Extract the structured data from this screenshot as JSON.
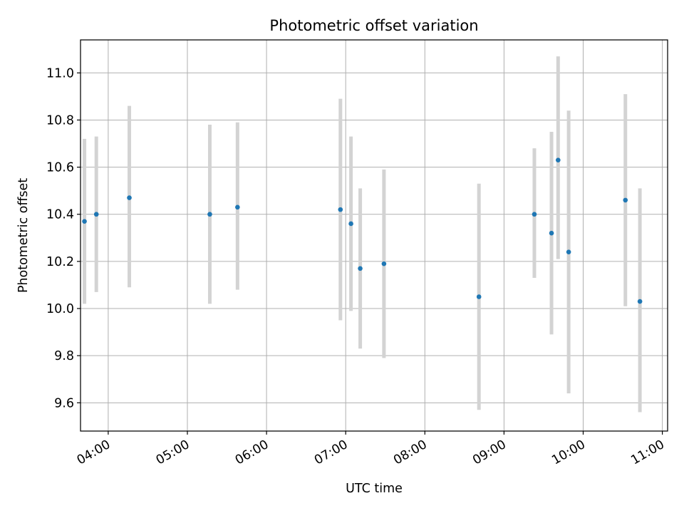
{
  "chart_data": {
    "type": "scatter",
    "title": "Photometric offset variation",
    "xlabel": "UTC time",
    "ylabel": "Photometric offset",
    "x_unit": "time of day (UTC)",
    "xlim": [
      "03:39",
      "11:04"
    ],
    "ylim": [
      9.48,
      11.14
    ],
    "grid": true,
    "x_ticks": [
      "04:00",
      "05:00",
      "06:00",
      "07:00",
      "08:00",
      "09:00",
      "10:00",
      "11:00"
    ],
    "y_ticks": [
      "9.6",
      "9.8",
      "10.0",
      "10.2",
      "10.4",
      "10.6",
      "10.8",
      "11.0"
    ],
    "marker_color": "#1f77b4",
    "errorbar_color": "#d3d3d3",
    "points": [
      {
        "time": "03:42",
        "y": 10.37,
        "lo": 10.02,
        "hi": 10.72
      },
      {
        "time": "03:51",
        "y": 10.4,
        "lo": 10.07,
        "hi": 10.73
      },
      {
        "time": "04:16",
        "y": 10.47,
        "lo": 10.09,
        "hi": 10.86
      },
      {
        "time": "05:17",
        "y": 10.4,
        "lo": 10.02,
        "hi": 10.78
      },
      {
        "time": "05:38",
        "y": 10.43,
        "lo": 10.08,
        "hi": 10.79
      },
      {
        "time": "06:56",
        "y": 10.42,
        "lo": 9.95,
        "hi": 10.89
      },
      {
        "time": "07:04",
        "y": 10.36,
        "lo": 9.99,
        "hi": 10.73
      },
      {
        "time": "07:11",
        "y": 10.17,
        "lo": 9.83,
        "hi": 10.51
      },
      {
        "time": "07:29",
        "y": 10.19,
        "lo": 9.79,
        "hi": 10.59
      },
      {
        "time": "08:41",
        "y": 10.05,
        "lo": 9.57,
        "hi": 10.53
      },
      {
        "time": "09:23",
        "y": 10.4,
        "lo": 10.13,
        "hi": 10.68
      },
      {
        "time": "09:36",
        "y": 10.32,
        "lo": 9.89,
        "hi": 10.75
      },
      {
        "time": "09:41",
        "y": 10.63,
        "lo": 10.21,
        "hi": 11.07
      },
      {
        "time": "09:49",
        "y": 10.24,
        "lo": 9.64,
        "hi": 10.84
      },
      {
        "time": "10:32",
        "y": 10.46,
        "lo": 10.01,
        "hi": 10.91
      },
      {
        "time": "10:43",
        "y": 10.03,
        "lo": 9.56,
        "hi": 10.51
      }
    ]
  }
}
